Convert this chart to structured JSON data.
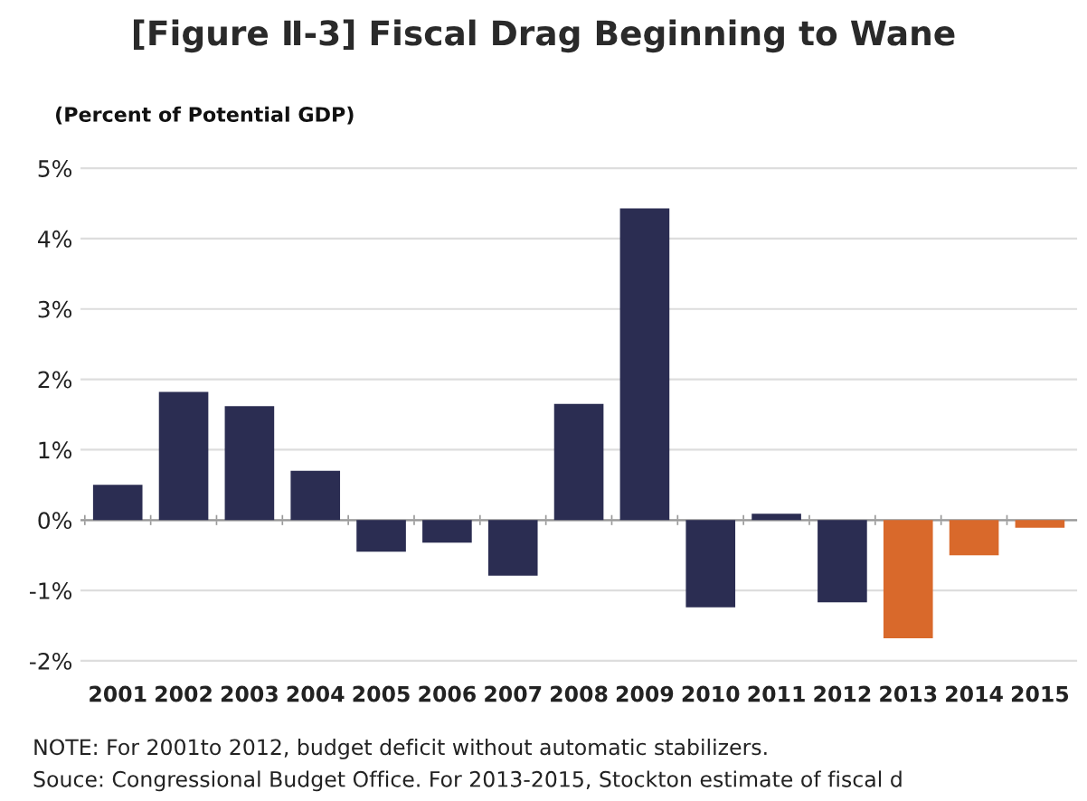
{
  "chart_data": {
    "type": "bar",
    "title": "[Figure Ⅱ-3] Fiscal Drag Beginning to Wane",
    "ylabel": "(Percent of Potential GDP)",
    "categories": [
      "2001",
      "2002",
      "2003",
      "2004",
      "2005",
      "2006",
      "2007",
      "2008",
      "2009",
      "2010",
      "2011",
      "2012",
      "2013",
      "2014",
      "2015"
    ],
    "values": [
      0.5,
      1.82,
      1.62,
      0.7,
      -0.45,
      -0.32,
      -0.79,
      1.65,
      4.43,
      -1.24,
      0.09,
      -1.17,
      -1.68,
      -0.5,
      -0.11
    ],
    "colors": [
      "#2b2d52",
      "#2b2d52",
      "#2b2d52",
      "#2b2d52",
      "#2b2d52",
      "#2b2d52",
      "#2b2d52",
      "#2b2d52",
      "#2b2d52",
      "#2b2d52",
      "#2b2d52",
      "#2b2d52",
      "#d9692b",
      "#d9692b",
      "#d9692b"
    ],
    "ylim": [
      -2,
      5
    ],
    "yticks": [
      {
        "value": -2,
        "label": "-2%"
      },
      {
        "value": -1,
        "label": "-1%"
      },
      {
        "value": 0,
        "label": "0%"
      },
      {
        "value": 1,
        "label": "1%"
      },
      {
        "value": 2,
        "label": "2%"
      },
      {
        "value": 3,
        "label": "3%"
      },
      {
        "value": 4,
        "label": "4%"
      },
      {
        "value": 5,
        "label": "5%"
      }
    ],
    "grid": "y",
    "legend": false,
    "annotations": [
      "NOTE: For 2001to 2012, budget deficit without automatic stabilizers.",
      "Souce: Congressional Budget Office. For 2013-2015, Stockton estimate of fiscal d"
    ]
  }
}
